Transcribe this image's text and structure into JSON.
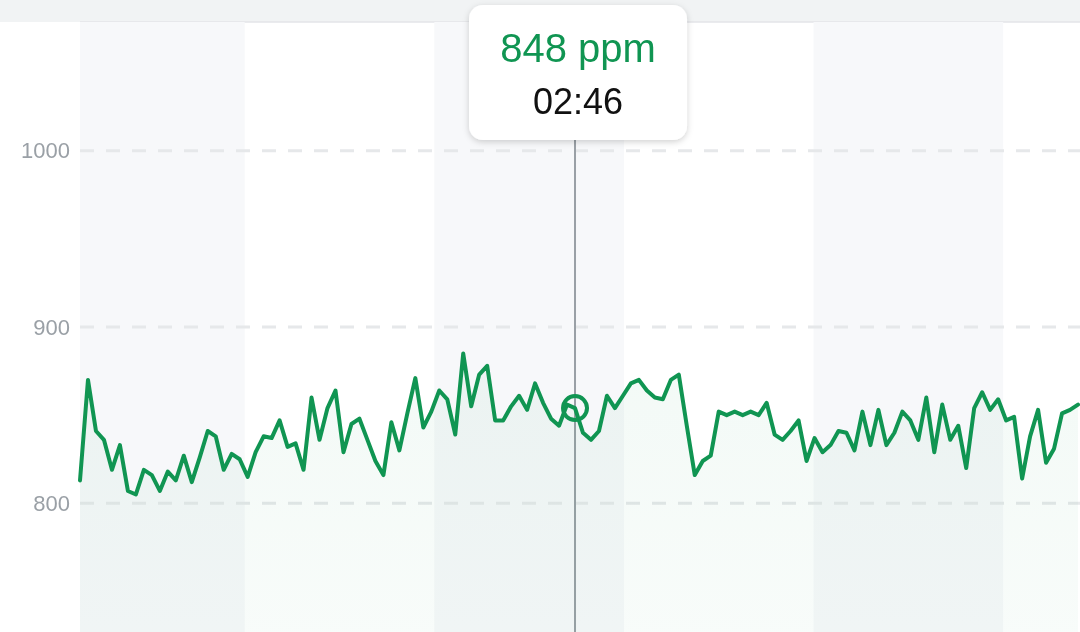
{
  "chart_data": {
    "type": "area",
    "categories": [
      null,
      null,
      null,
      null,
      null,
      null,
      null,
      null,
      null,
      null,
      null,
      null,
      null,
      null,
      null,
      null,
      null,
      null,
      null,
      null,
      null,
      null,
      null,
      null,
      null,
      null,
      null,
      null,
      null,
      null,
      null,
      null,
      null,
      null,
      null,
      null,
      null,
      null,
      null,
      null,
      null,
      null,
      null,
      null,
      null,
      null,
      null,
      null,
      null,
      null,
      null,
      null,
      null,
      null,
      null,
      null,
      null,
      null,
      null,
      null,
      null,
      null,
      null,
      null,
      null,
      null,
      null,
      null,
      null,
      null,
      null,
      null,
      null,
      null,
      null,
      null,
      null,
      null,
      null,
      null,
      null,
      null,
      null,
      null,
      null,
      null,
      null,
      null,
      null,
      null,
      null,
      null,
      null,
      null,
      null,
      null,
      null,
      null,
      null,
      null,
      null,
      null,
      null,
      null,
      null,
      null,
      null,
      null,
      null,
      null,
      null,
      null,
      null,
      null,
      null,
      null,
      null,
      null,
      null,
      null,
      null,
      null,
      null,
      null,
      null,
      null
    ],
    "series": [
      {
        "color": "#109552",
        "values": [
          813,
          870,
          841,
          836,
          819,
          833,
          807,
          805,
          819,
          816,
          807,
          818,
          813,
          827,
          812,
          826,
          841,
          838,
          819,
          828,
          825,
          815,
          829,
          838,
          837,
          847,
          832,
          834,
          819,
          860,
          836,
          854,
          864,
          829,
          845,
          848,
          836,
          824,
          816,
          846,
          830,
          851,
          871,
          843,
          852,
          864,
          859,
          839,
          885,
          855,
          873,
          878,
          847,
          847,
          855,
          861,
          853,
          868,
          857,
          848,
          844,
          856,
          854,
          840,
          836,
          841,
          861,
          854,
          861,
          868,
          870,
          864,
          860,
          859,
          870,
          873,
          844,
          816,
          824,
          827,
          852,
          850,
          852,
          850,
          852,
          850,
          857,
          839,
          836,
          841,
          847,
          824,
          837,
          829,
          833,
          841,
          840,
          830,
          852,
          833,
          853,
          833,
          840,
          852,
          847,
          836,
          860,
          829,
          856,
          836,
          844,
          820,
          854,
          863,
          853,
          859,
          847,
          849,
          814,
          838,
          853,
          823,
          831,
          851,
          853,
          856
        ]
      }
    ],
    "ylim": [
      727,
      1073
    ],
    "yticks": [
      800,
      900,
      1000
    ],
    "grid": "y",
    "annotations": [
      "848 ppm",
      "02:46"
    ]
  }
}
